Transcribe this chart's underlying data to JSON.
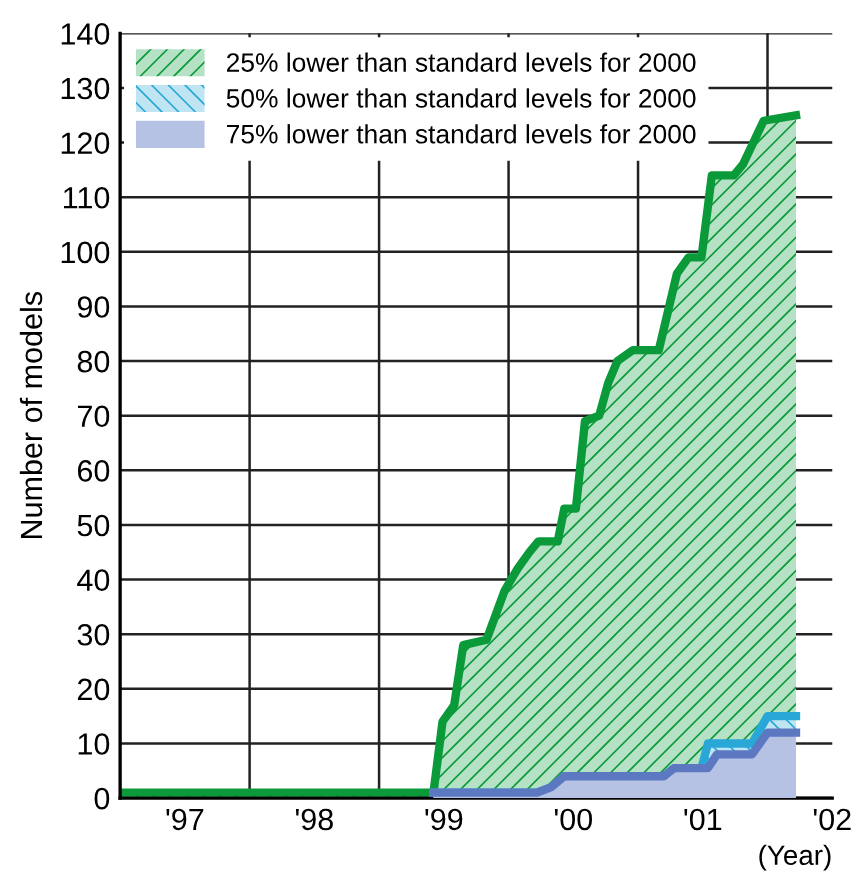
{
  "chart_data": {
    "type": "area",
    "ylabel": "Number of models",
    "xlabel": "(Year)",
    "xlim": [
      1996.5,
      2002
    ],
    "ylim": [
      0,
      140
    ],
    "xticks": [
      {
        "value": 1997,
        "label": "'97"
      },
      {
        "value": 1997.5,
        "label": null
      },
      {
        "value": 1998,
        "label": "'98"
      },
      {
        "value": 1998.5,
        "label": null
      },
      {
        "value": 1999,
        "label": "'99"
      },
      {
        "value": 1999.5,
        "label": null
      },
      {
        "value": 2000,
        "label": "'00"
      },
      {
        "value": 2000.5,
        "label": null
      },
      {
        "value": 2001,
        "label": "'01"
      },
      {
        "value": 2001.5,
        "label": null
      },
      {
        "value": 2002,
        "label": "'02"
      }
    ],
    "yticks": [
      0,
      10,
      20,
      30,
      40,
      50,
      60,
      70,
      80,
      90,
      100,
      110,
      120,
      130,
      140
    ],
    "grid": true,
    "legend": "top left",
    "series": [
      {
        "name": "25% lower than standard levels for 2000",
        "color": "#0a9a3a",
        "x": [
          1996.5,
          1998.92,
          1998.99,
          1999.08,
          1999.15,
          1999.33,
          1999.47,
          1999.57,
          1999.66,
          1999.73,
          1999.88,
          1999.93,
          2000.02,
          2000.09,
          2000.2,
          2000.27,
          2000.34,
          2000.46,
          2000.66,
          2000.8,
          2000.89,
          2000.99,
          2001.07,
          2001.24,
          2001.31,
          2001.47,
          2001.72
        ],
        "values": [
          1,
          1,
          14,
          17,
          28,
          29,
          38,
          42,
          45,
          47,
          47,
          53,
          53,
          69,
          70,
          76,
          80,
          82,
          82,
          96,
          99,
          99,
          114,
          114,
          116,
          124,
          125
        ]
      },
      {
        "name": "50% lower than standard levels for 2000",
        "color": "#29a8d8",
        "x": [
          1998.92,
          1999.72,
          1999.83,
          1999.93,
          2000.7,
          2000.78,
          2000.99,
          2001.04,
          2001.38,
          2001.5,
          2001.72
        ],
        "values": [
          1,
          1,
          2,
          4,
          4,
          5.5,
          5.5,
          10,
          10,
          15,
          15
        ]
      },
      {
        "name": "75% lower than standard levels for 2000",
        "color": "#5b78c0",
        "x": [
          1998.92,
          1999.72,
          1999.83,
          1999.93,
          2000.7,
          2000.78,
          2001.04,
          2001.11,
          2001.38,
          2001.5,
          2001.72
        ],
        "values": [
          1,
          1,
          2,
          4,
          4,
          5.5,
          5.5,
          8,
          8,
          12,
          12
        ]
      }
    ]
  }
}
